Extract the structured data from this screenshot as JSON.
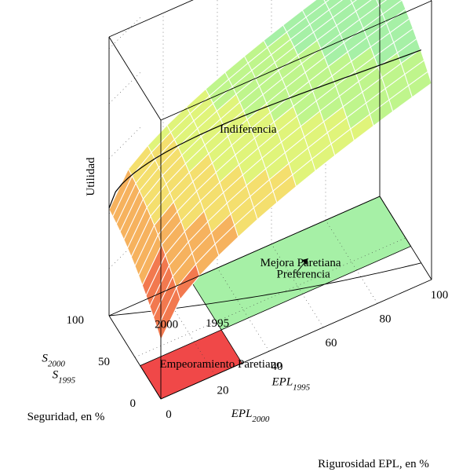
{
  "chart_data": {
    "type": "surface3d",
    "title": "",
    "zlabel": "Utilidad",
    "xlabel": "Rigurosidad EPL, en %",
    "ylabel": "Seguridad, en %",
    "xlim": [
      0,
      100
    ],
    "ylim": [
      0,
      100
    ],
    "x_ticks": [
      "0",
      "20",
      "40",
      "60",
      "80",
      "100"
    ],
    "y_ticks": [
      "0",
      "50",
      "100"
    ],
    "x_markers": [
      {
        "symbol": "EPL",
        "sub": "2000",
        "value": 15
      },
      {
        "symbol": "EPL",
        "sub": "1995",
        "value": 30
      }
    ],
    "y_markers": [
      {
        "symbol": "S",
        "sub": "2000",
        "value": 60
      },
      {
        "symbol": "S",
        "sub": "1995",
        "value": 40
      }
    ],
    "points": [
      {
        "label": "2000",
        "x": 15,
        "y": 60
      },
      {
        "label": "1995",
        "x": 30,
        "y": 40
      }
    ],
    "regions": [
      {
        "label": "Mejora Paretiana",
        "x": [
          30,
          100
        ],
        "y": [
          40,
          100
        ],
        "color": "#a6f0a6"
      },
      {
        "label": "Empeoramiento Paretiano",
        "x": [
          0,
          30
        ],
        "y": [
          0,
          40
        ],
        "color": "#f04848"
      }
    ],
    "annotations": [
      "Indiferencia",
      "Preferencia"
    ],
    "surface_colors": [
      "#ee3333",
      "#f2794f",
      "#f6b25e",
      "#f4df6e",
      "#e0f47a",
      "#bff58c",
      "#a6f0a6"
    ],
    "grid": true
  }
}
